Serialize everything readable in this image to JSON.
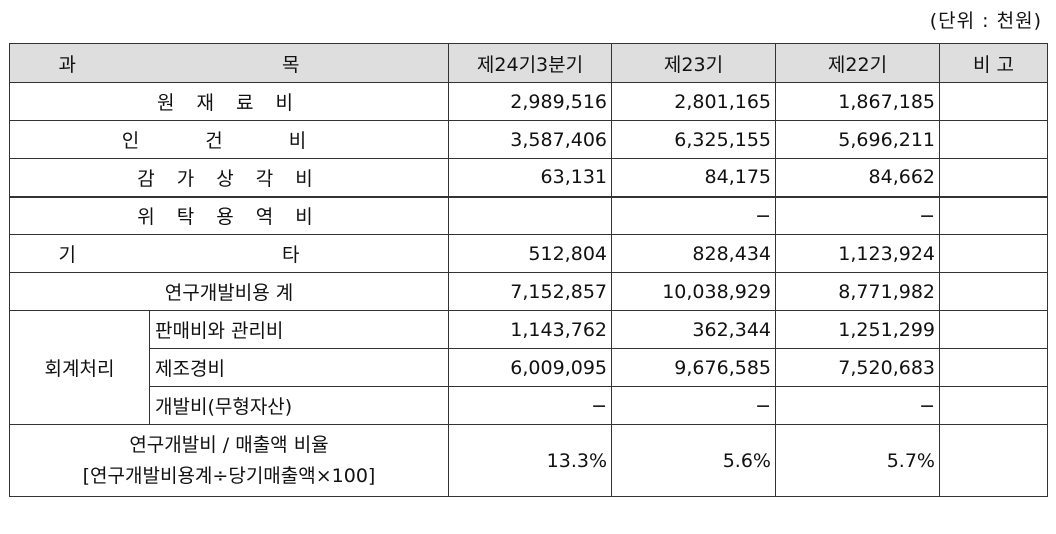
{
  "unit_note": "(단위 : 천원)",
  "headers": {
    "subject": "과 목",
    "col1": "제24기3분기",
    "col2": "제23기",
    "col3": "제22기",
    "note": "비 고"
  },
  "rows": {
    "raw_materials": {
      "label": "원 재 료 비",
      "v1": "2,989,516",
      "v2": "2,801,165",
      "v3": "1,867,185"
    },
    "labor": {
      "label": "인 건 비",
      "v1": "3,587,406",
      "v2": "6,325,155",
      "v3": "5,696,211"
    },
    "depreciation": {
      "label": "감 가 상 각 비",
      "v1": "63,131",
      "v2": "84,175",
      "v3": "84,662"
    },
    "outsourcing": {
      "label": "위 탁 용 역 비",
      "v1": "",
      "v2": "−",
      "v3": "−"
    },
    "other": {
      "label": "기 타",
      "v1": "512,804",
      "v2": "828,434",
      "v3": "1,123,924"
    },
    "total": {
      "label": "연구개발비용 계",
      "v1": "7,152,857",
      "v2": "10,038,929",
      "v3": "8,771,982"
    }
  },
  "accounting": {
    "group_label": "회계처리",
    "sga": {
      "label": "판매비와 관리비",
      "v1": "1,143,762",
      "v2": "362,344",
      "v3": "1,251,299"
    },
    "mfg": {
      "label": "제조경비",
      "v1": "6,009,095",
      "v2": "9,676,585",
      "v3": "7,520,683"
    },
    "dev": {
      "label": "개발비(무형자산)",
      "v1": "−",
      "v2": "−",
      "v3": "−"
    }
  },
  "ratio": {
    "label_line1": "연구개발비 / 매출액 비율",
    "label_line2": "[연구개발비용계÷당기매출액×100]",
    "v1": "13.3%",
    "v2": "5.6%",
    "v3": "5.7%"
  }
}
